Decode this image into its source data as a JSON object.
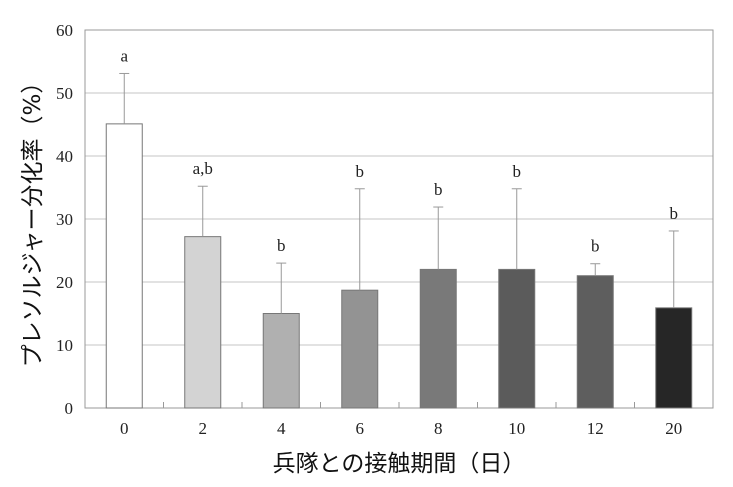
{
  "chart_data": {
    "type": "bar",
    "xlabel": "兵隊との接触期間（日）",
    "ylabel": "プレソルジャー分化率（%）",
    "ylim": [
      0,
      60
    ],
    "yticks": [
      0,
      10,
      20,
      30,
      40,
      50,
      60
    ],
    "grid": true,
    "categories": [
      "0",
      "2",
      "4",
      "6",
      "8",
      "10",
      "12",
      "20"
    ],
    "values": [
      45.1,
      27.2,
      15.0,
      18.7,
      22.0,
      22.0,
      21.0,
      15.9
    ],
    "error_upper": [
      53.1,
      35.2,
      23.0,
      34.8,
      31.9,
      34.8,
      22.9,
      28.1
    ],
    "significance_labels": [
      "a",
      "a,b",
      "b",
      "b",
      "b",
      "b",
      "b",
      "b"
    ],
    "bar_colors": [
      "#ffffff",
      "#d3d3d3",
      "#b0b0b0",
      "#939393",
      "#797979",
      "#5b5b5b",
      "#5e5e5e",
      "#262626"
    ]
  }
}
